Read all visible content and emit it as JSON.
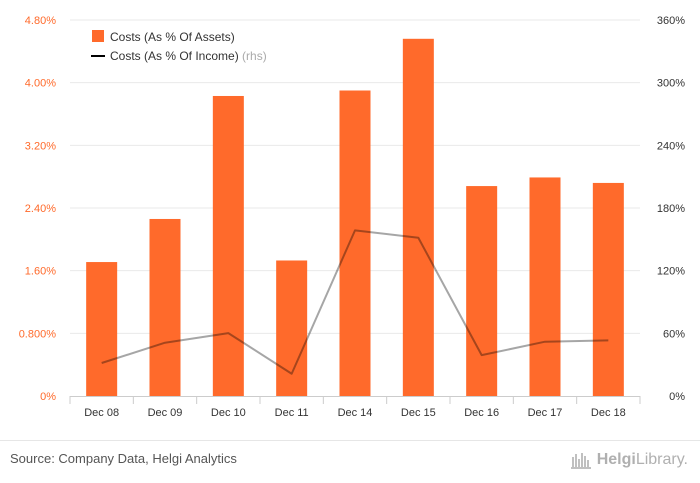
{
  "chart_data": {
    "type": "bar",
    "categories": [
      "Dec 08",
      "Dec 09",
      "Dec 10",
      "Dec 11",
      "Dec 14",
      "Dec 15",
      "Dec 16",
      "Dec 17",
      "Dec 18"
    ],
    "series": [
      {
        "name": "Costs (As % Of Assets)",
        "type": "bar",
        "axis": "left",
        "color": "#ff6a2b",
        "values": [
          1.71,
          2.26,
          3.83,
          1.73,
          3.9,
          4.56,
          2.68,
          2.79,
          2.72
        ]
      },
      {
        "name": "Costs (As % Of Income)",
        "type": "line",
        "axis": "right",
        "color": "#000000",
        "values": [
          31.6,
          51.0,
          60.2,
          21.3,
          158.6,
          151.5,
          39.1,
          52.0,
          53.2
        ]
      }
    ],
    "left_axis": {
      "min": 0,
      "max": 4.8,
      "ticks": [
        "0%",
        "0.800%",
        "1.60%",
        "2.40%",
        "3.20%",
        "4.00%",
        "4.80%"
      ],
      "color": "#ff6a2b"
    },
    "right_axis": {
      "min": 0,
      "max": 360,
      "ticks": [
        "0%",
        "60%",
        "120%",
        "180%",
        "240%",
        "300%",
        "360%"
      ]
    },
    "legend": {
      "position": "top-left",
      "items": [
        {
          "label": "Costs (As % Of Assets)",
          "suffix": ""
        },
        {
          "label": "Costs (As % Of Income)",
          "suffix": "(rhs)"
        }
      ]
    },
    "grid": true
  },
  "footer": {
    "source": "Source: Company Data, Helgi Analytics",
    "logo_bold": "Helgi",
    "logo_rest": "Library."
  }
}
